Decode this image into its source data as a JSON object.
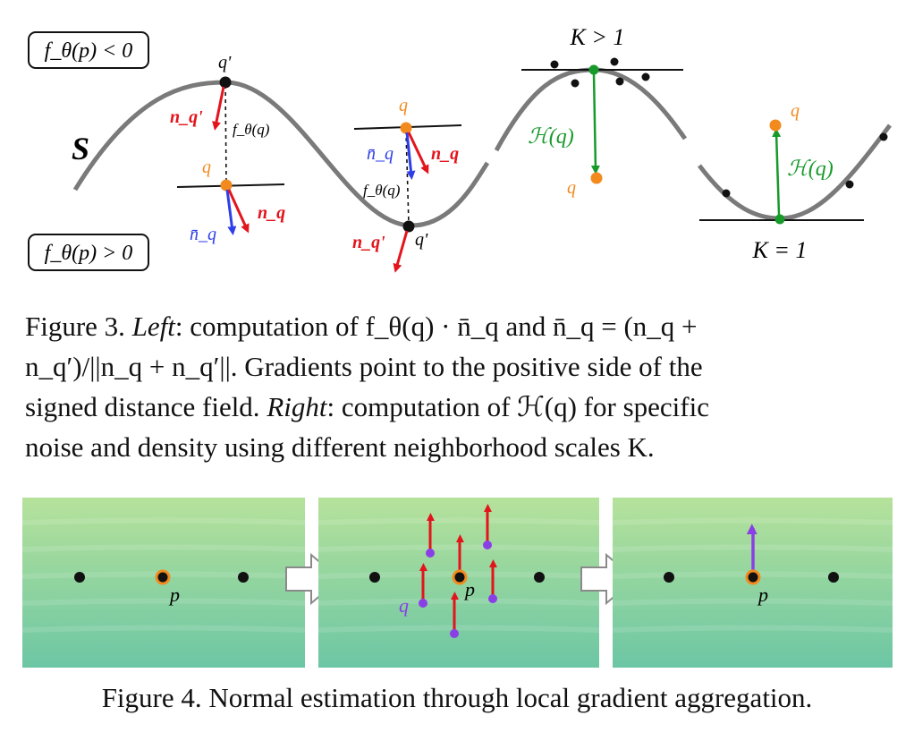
{
  "figure3": {
    "box_neg": "f_θ(p) < 0",
    "box_pos": "f_θ(p) > 0",
    "surface_label": "S",
    "left": {
      "q_prime_1": "q'",
      "n_q_prime_1": "n_q'",
      "f_label_1": "f_θ(q)",
      "q_1": "q",
      "nbar_1": "n̄_q",
      "nq_1": "n_q",
      "q_2": "q",
      "nbar_2": "n̄_q",
      "nq_2": "n_q",
      "f_label_2": "f_θ(q)",
      "q_prime_2": "q'",
      "n_q_prime_2": "n_q'"
    },
    "right": {
      "k_gt": "K > 1",
      "k_eq": "K = 1",
      "h_1": "ℋ(q)",
      "h_2": "ℋ(q)",
      "q_1": "q",
      "q_2": "q"
    },
    "caption": {
      "label": "Figure 3.",
      "left_word": "Left",
      "line1_text": ": computation of f_θ(q) · n̄_q and n̄_q = (n_q +",
      "line2_text": "n_q′)/||n_q + n_q′||. Gradients point to the positive side of the",
      "line3_a": "signed distance field.",
      "right_word": "Right",
      "line3_b": ": computation of ℋ(q) for specific",
      "line4_text": "noise and density using different neighborhood scales K."
    }
  },
  "figure4": {
    "panel1_p": "p",
    "panel2_p": "p",
    "panel2_q": "q",
    "panel3_p": "p",
    "caption": "Figure 4. Normal estimation through local gradient aggregation."
  },
  "colors": {
    "red": "#e3141c",
    "blue": "#2e3ee8",
    "orange": "#f28a1e",
    "green": "#169a2a",
    "purple": "#8a3fe6",
    "gray_curve": "#7a7a7a",
    "panel_top": "#b6e29b",
    "panel_bottom": "#6cc6a4"
  }
}
